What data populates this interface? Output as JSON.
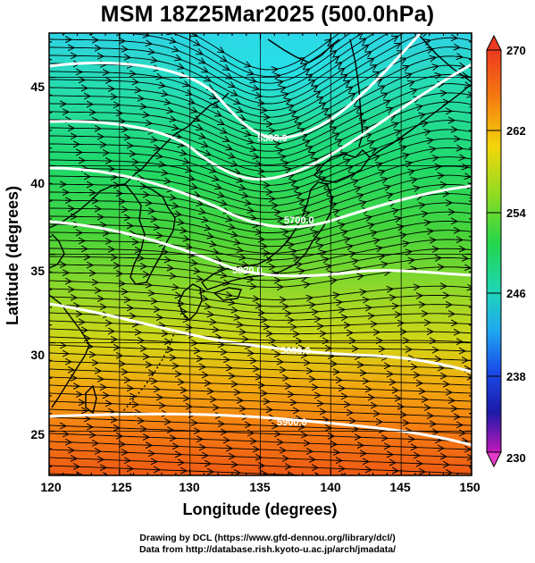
{
  "title": "MSM 18Z25Mar2025 (500.0hPa)",
  "axes": {
    "xlabel": "Longitude (degrees)",
    "ylabel": "Latitude  (degrees)",
    "xticks": [
      "120",
      "125",
      "130",
      "135",
      "140",
      "145",
      "150"
    ],
    "yticks": [
      "25",
      "30",
      "35",
      "40",
      "45"
    ]
  },
  "colorbar": {
    "ticks": [
      "270",
      "262",
      "254",
      "246",
      "238",
      "230"
    ]
  },
  "contour_labels": [
    "5580.0",
    "5700.0",
    "5820.0",
    "5880.0",
    "5900.0"
  ],
  "credits": {
    "line1": "Drawing by DCL (https://www.gfd-dennou.org/library/dcl/)",
    "line2": "Data from http://database.rish.kyoto-u.ac.jp/arch/jmadata/"
  },
  "chart_data": {
    "type": "map",
    "variable": "temperature shading with streamlines and geopotential height contours",
    "xlim": [
      120,
      150
    ],
    "ylim": [
      22.5,
      47.5
    ],
    "color_range": [
      230,
      270
    ]
  }
}
